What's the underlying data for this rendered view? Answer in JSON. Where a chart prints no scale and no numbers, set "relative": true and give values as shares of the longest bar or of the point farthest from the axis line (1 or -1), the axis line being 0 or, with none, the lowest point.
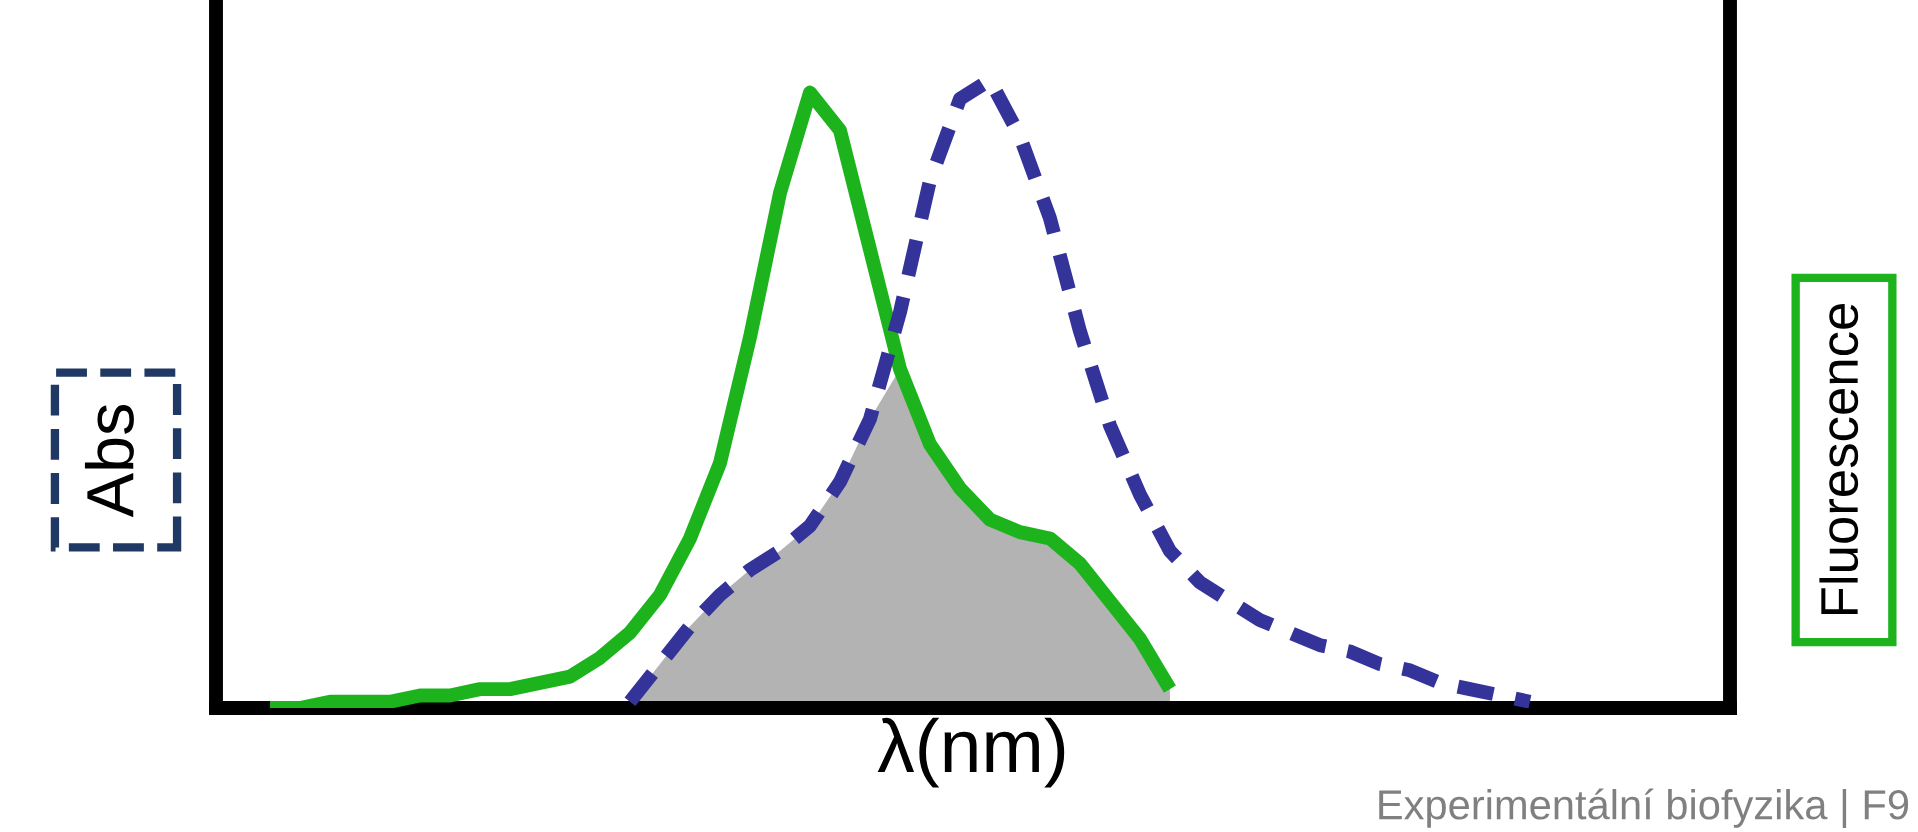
{
  "chart_data": {
    "type": "line",
    "relative": true,
    "xlabel": "λ(nm)",
    "ylabel": "Abs",
    "categories": [
      null,
      null,
      null,
      null,
      null,
      null,
      null,
      null,
      null,
      null,
      null,
      null,
      null,
      null,
      null,
      null,
      null,
      null,
      null,
      null,
      null,
      null,
      null,
      null,
      null,
      null,
      null,
      null,
      null,
      null,
      null,
      null,
      null,
      null,
      null,
      null,
      null,
      null,
      null,
      null,
      null,
      null,
      null
    ],
    "series": [
      {
        "type": "area",
        "color": "#b3b3b3",
        "values": [
          null,
          null,
          null,
          null,
          null,
          null,
          null,
          null,
          null,
          null,
          null,
          null,
          0.01,
          0.07,
          0.13,
          0.18,
          0.22,
          0.25,
          0.29,
          0.36,
          0.46,
          0.54,
          0.42,
          0.35,
          0.3,
          0.28,
          0.27,
          0.23,
          0.17,
          0.11,
          0.03,
          null,
          null,
          null,
          null,
          null,
          null,
          null,
          null,
          null,
          null,
          null,
          null
        ]
      },
      {
        "color": "#1db31d",
        "line_style": "solid",
        "values": [
          0,
          0,
          0.01,
          0.01,
          0.01,
          0.02,
          0.02,
          0.03,
          0.03,
          0.04,
          0.05,
          0.08,
          0.12,
          0.18,
          0.27,
          0.39,
          0.59,
          0.82,
          0.98,
          0.92,
          0.73,
          0.54,
          0.42,
          0.35,
          0.3,
          0.28,
          0.27,
          0.23,
          0.17,
          0.11,
          0.03,
          null,
          null,
          null,
          null,
          null,
          null,
          null,
          null,
          null,
          null,
          null,
          null
        ]
      },
      {
        "color": "#33339a",
        "line_style": "dashed",
        "values": [
          null,
          null,
          null,
          null,
          null,
          null,
          null,
          null,
          null,
          null,
          null,
          null,
          0.01,
          0.07,
          0.13,
          0.18,
          0.22,
          0.25,
          0.29,
          0.36,
          0.46,
          0.63,
          0.84,
          0.97,
          1.0,
          0.91,
          0.78,
          0.6,
          0.45,
          0.34,
          0.25,
          0.2,
          0.17,
          0.14,
          0.12,
          0.1,
          0.09,
          0.07,
          0.06,
          0.04,
          0.03,
          0.02,
          0.01
        ]
      }
    ],
    "annotations": [
      "Fluorescence",
      "Experimentální biofyzika | F9"
    ]
  }
}
